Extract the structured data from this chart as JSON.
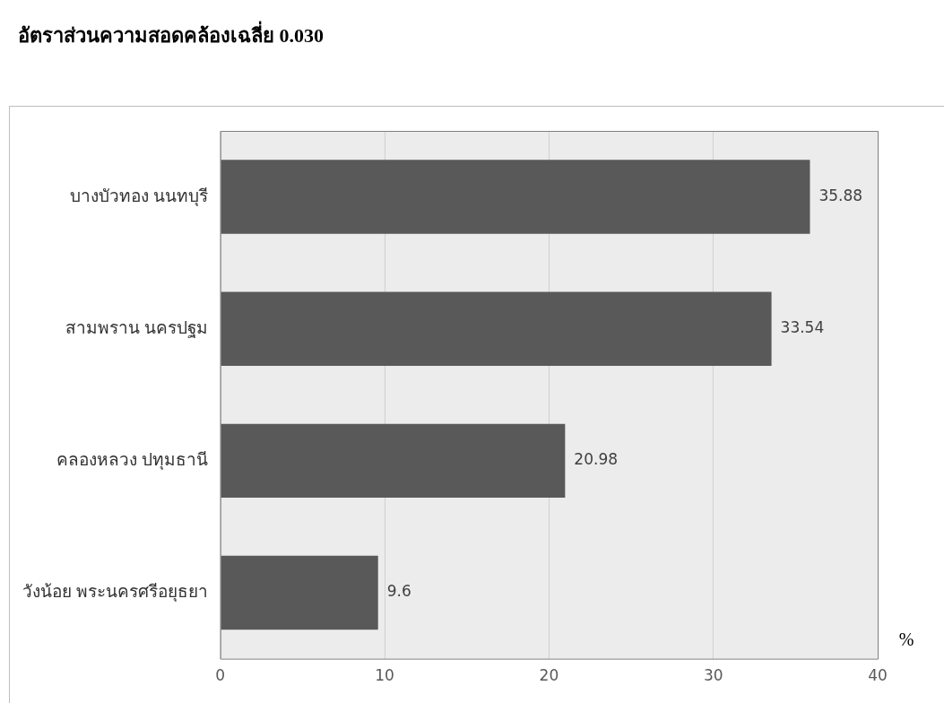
{
  "chart_data": {
    "type": "bar",
    "orientation": "horizontal",
    "title": "อัตราส่วนความสอดคล้องเฉลี่ย  0.030",
    "xlabel": "%",
    "categories": [
      "บางบัวทอง นนทบุรี",
      "สามพราน นครปฐม",
      "คลองหลวง ปทุมธานี",
      "วังน้อย พระนครศรีอยุธยา"
    ],
    "values": [
      35.88,
      33.54,
      20.98,
      9.6
    ],
    "color": "#595959",
    "xlim": [
      0,
      40
    ],
    "xticks": [
      0,
      10,
      20,
      30,
      40
    ],
    "grid": "x",
    "data_labels": true
  }
}
